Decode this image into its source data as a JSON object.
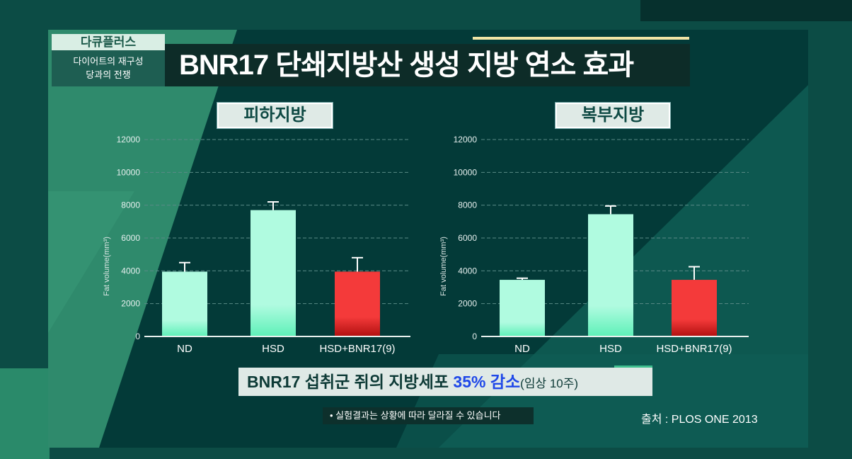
{
  "program": {
    "name": "다큐플러스",
    "episode_line1": "다이어트의 재구성",
    "episode_line2": "당과의 전쟁"
  },
  "title": "BNR17 단쇄지방산 생성 지방 연소 효과",
  "summary": {
    "prefix": "BNR17 섭취군 쥐의 지방세포 ",
    "highlight": "35% 감소",
    "suffix": "(임상 10주)"
  },
  "note": "• 실험결과는 상황에 따라 달라질 수 있습니다",
  "source": "출처 : PLOS ONE 2013",
  "colors": {
    "control": "#b0fbe0",
    "treatment": "#f43a3a",
    "grid": "#5a8a86"
  },
  "chart_data": [
    {
      "type": "bar",
      "title": "피하지방",
      "ylabel": "Fat volume(mm³)",
      "ylim": [
        0,
        12000
      ],
      "yticks": [
        0,
        2000,
        4000,
        6000,
        8000,
        10000,
        12000
      ],
      "grid": true,
      "categories": [
        "ND",
        "HSD",
        "HSD+BNR17(9)"
      ],
      "values": [
        3950,
        7700,
        3950
      ],
      "error_upper": [
        4500,
        8200,
        4800
      ]
    },
    {
      "type": "bar",
      "title": "복부지방",
      "ylabel": "Fat volume(mm³)",
      "ylim": [
        0,
        12000
      ],
      "yticks": [
        0,
        2000,
        4000,
        6000,
        8000,
        10000,
        12000
      ],
      "grid": true,
      "categories": [
        "ND",
        "HSD",
        "HSD+BNR17(9)"
      ],
      "values": [
        3450,
        7450,
        3450
      ],
      "error_upper": [
        3550,
        7950,
        4250
      ]
    }
  ]
}
